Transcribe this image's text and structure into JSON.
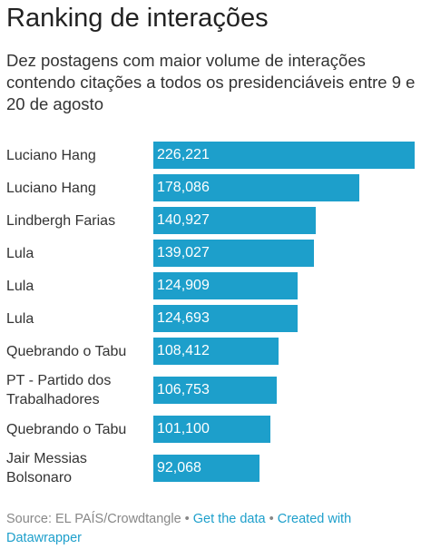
{
  "title": "Ranking de interações",
  "subtitle": "Dez postagens com maior volume de interações contendo citações a todos os presidenciáveis entre 9 e 20 de agosto",
  "colors": {
    "bar": "#1d9fcb",
    "value_text": "#ffffff",
    "link": "#1d9fcb",
    "footer_text": "#888888"
  },
  "chart_data": {
    "type": "bar",
    "orientation": "horizontal",
    "title": "Ranking de interações",
    "subtitle": "Dez postagens com maior volume de interações contendo citações a todos os presidenciáveis entre 9 e 20 de agosto",
    "xlim": [
      0,
      226221
    ],
    "categories": [
      "Luciano Hang",
      "Luciano Hang",
      "Lindbergh Farias",
      "Lula",
      "Lula",
      "Lula",
      "Quebrando o Tabu",
      "PT - Partido dos Trabalhadores",
      "Quebrando o Tabu",
      "Jair Messias Bolsonaro"
    ],
    "values": [
      226221,
      178086,
      140927,
      139027,
      124909,
      124693,
      108412,
      106753,
      101100,
      92068
    ],
    "value_labels": [
      "226,221",
      "178,086",
      "140,927",
      "139,027",
      "124,909",
      "124,693",
      "108,412",
      "106,753",
      "101,100",
      "92,068"
    ]
  },
  "footer": {
    "source": "Source: EL PAÍS/Crowdtangle",
    "separator": "•",
    "get_data_label": "Get the data",
    "created_with_label": "Created with Datawrapper"
  }
}
